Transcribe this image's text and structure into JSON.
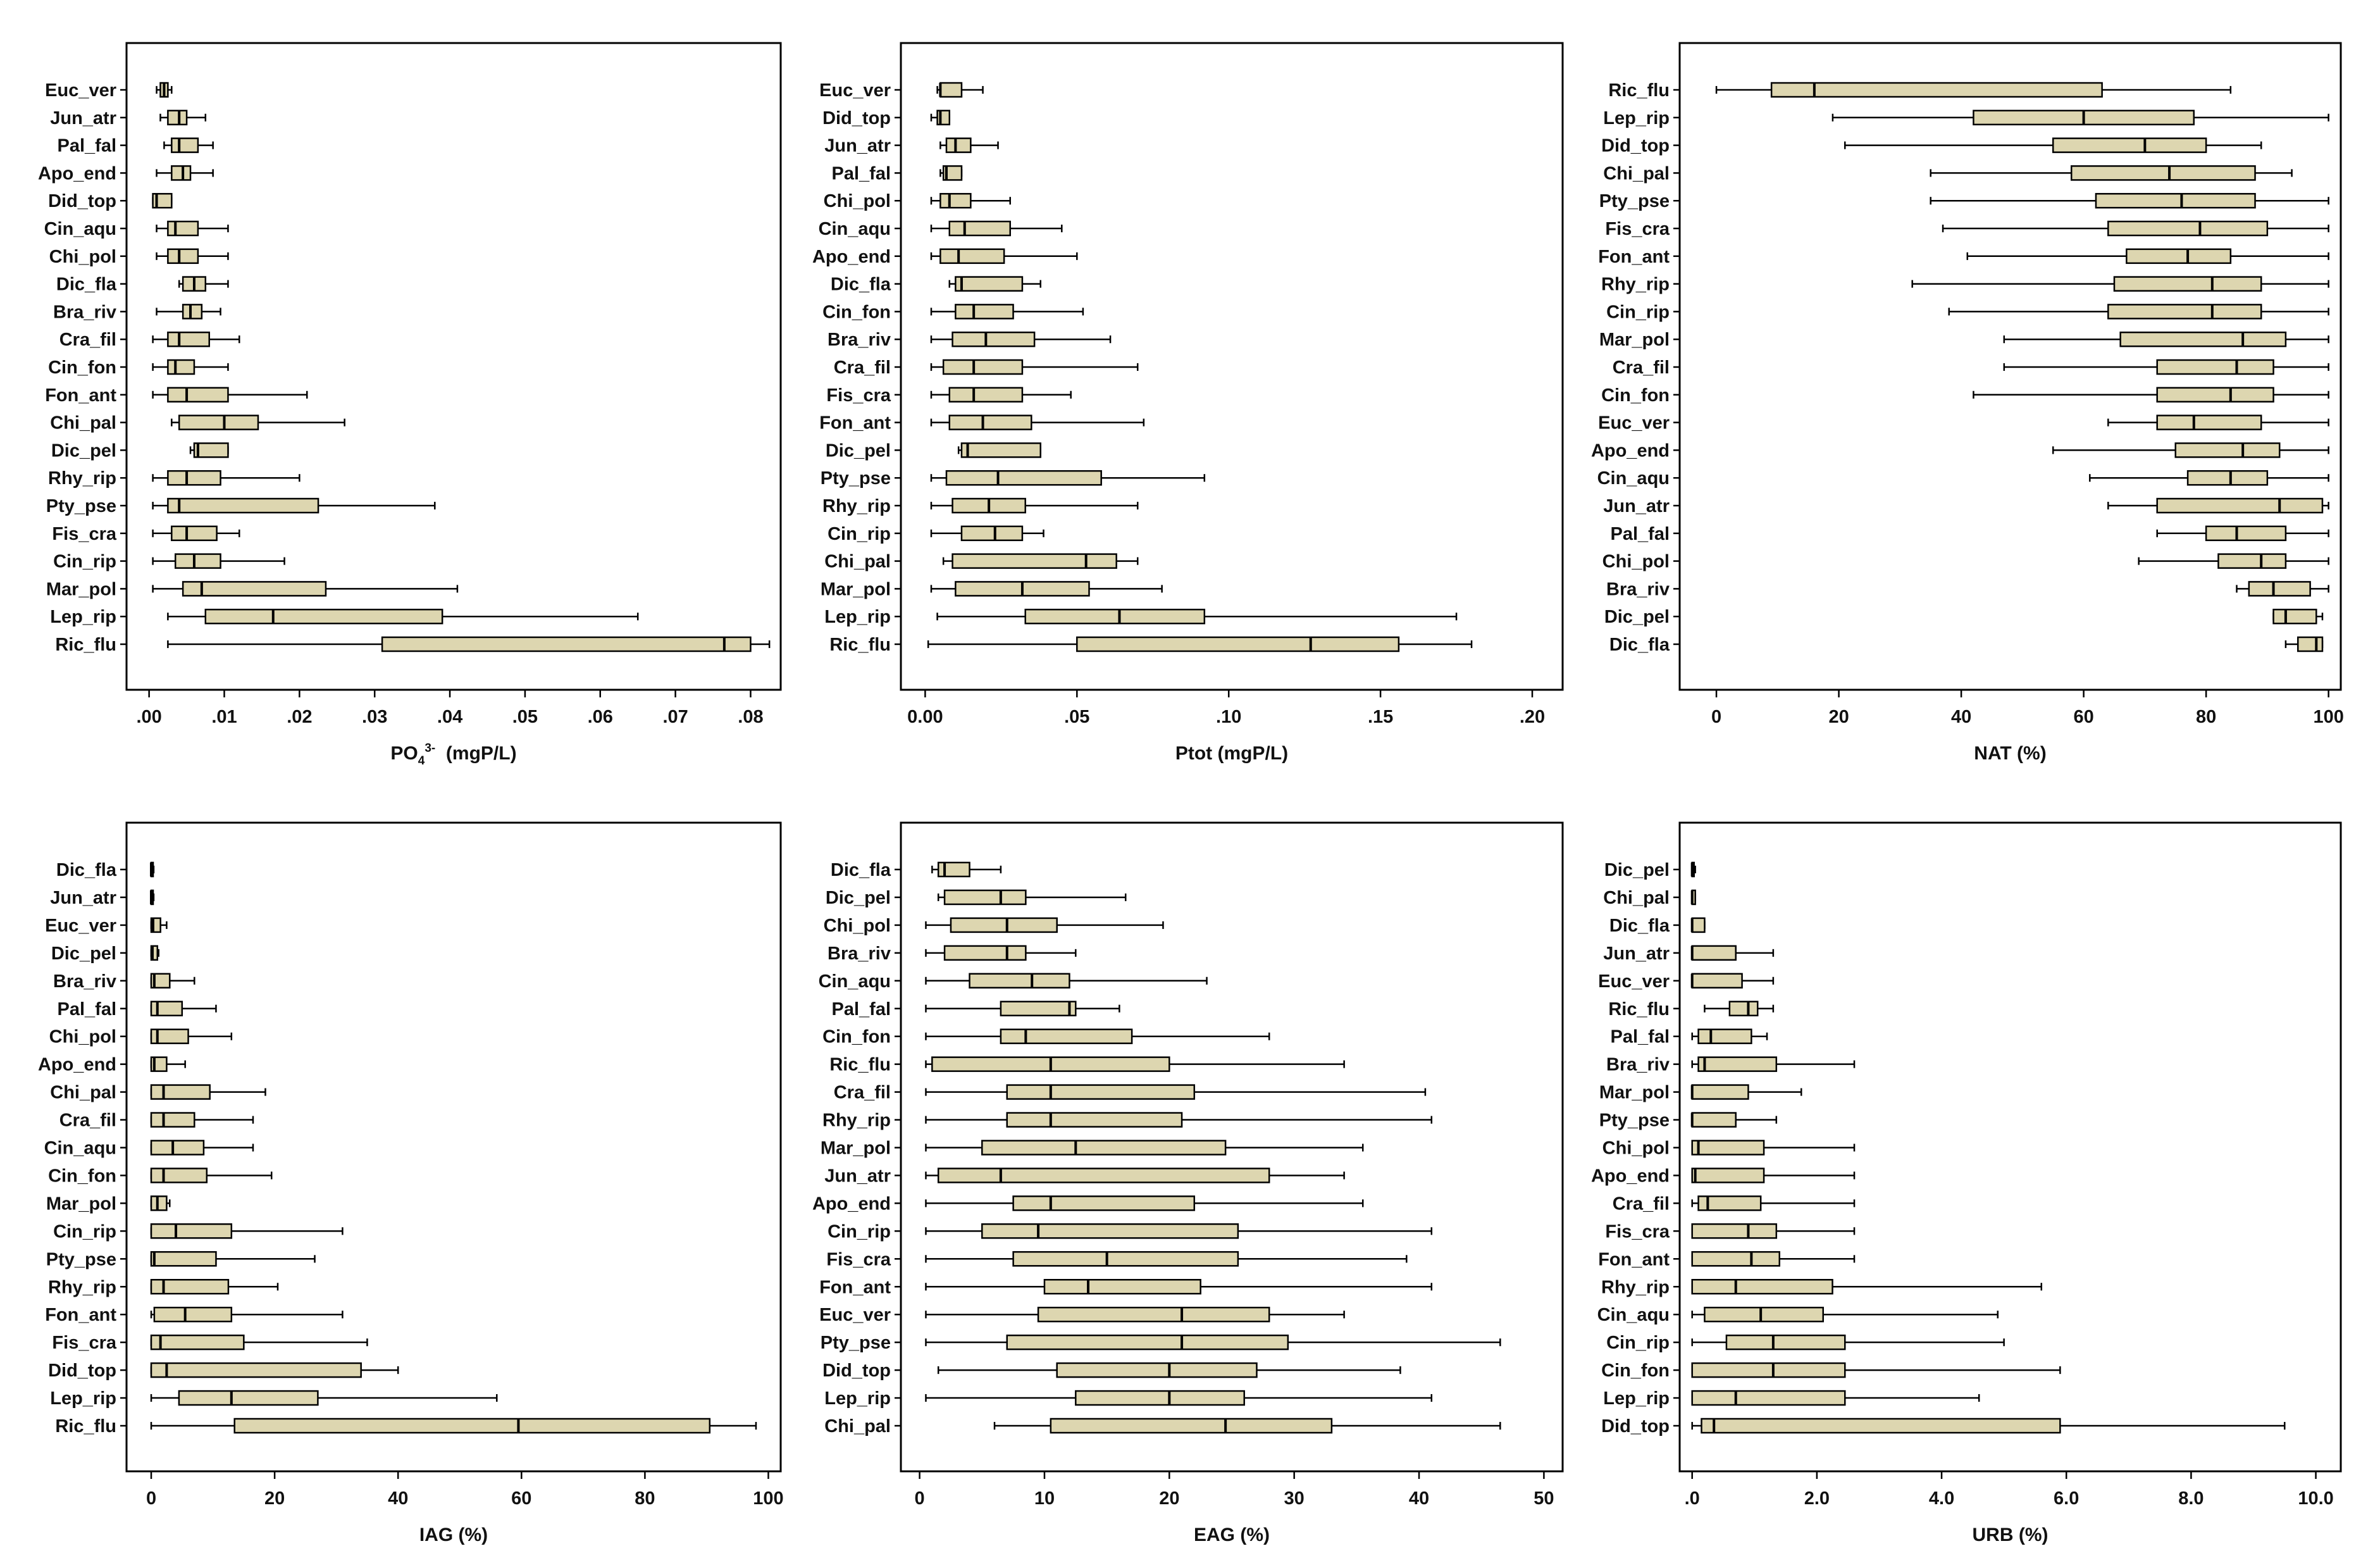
{
  "colors": {
    "box_fill": "#DDD6B0",
    "stroke": "#000000",
    "frame": "#000000",
    "background": "#ffffff"
  },
  "chart_data": [
    {
      "type": "boxplot",
      "xlabel_parts": {
        "main": "PO",
        "sub": "4",
        "sup": "3-",
        "unit": "  (mgP/L)"
      },
      "xlim": [
        -0.003,
        0.084
      ],
      "ticks": [
        0.0,
        0.01,
        0.02,
        0.03,
        0.04,
        0.05,
        0.06,
        0.07,
        0.08
      ],
      "tick_labels": [
        ".00",
        ".01",
        ".02",
        ".03",
        ".04",
        ".05",
        ".06",
        ".07",
        ".08"
      ],
      "categories": [
        "Euc_ver",
        "Jun_atr",
        "Pal_fal",
        "Apo_end",
        "Did_top",
        "Cin_aqu",
        "Chi_pol",
        "Dic_fla",
        "Bra_riv",
        "Cra_fil",
        "Cin_fon",
        "Fon_ant",
        "Chi_pal",
        "Dic_pel",
        "Rhy_rip",
        "Pty_pse",
        "Fis_cra",
        "Cin_rip",
        "Mar_pol",
        "Lep_rip",
        "Ric_flu"
      ],
      "boxes": [
        [
          0.001,
          0.0015,
          0.002,
          0.0025,
          0.003
        ],
        [
          0.0015,
          0.0025,
          0.004,
          0.005,
          0.0075
        ],
        [
          0.002,
          0.003,
          0.004,
          0.0065,
          0.0085
        ],
        [
          0.001,
          0.003,
          0.0045,
          0.0055,
          0.0085
        ],
        [
          0.0005,
          0.0005,
          0.001,
          0.003,
          0.003
        ],
        [
          0.001,
          0.0025,
          0.0035,
          0.0065,
          0.0105
        ],
        [
          0.001,
          0.0025,
          0.004,
          0.0065,
          0.0105
        ],
        [
          0.004,
          0.0045,
          0.006,
          0.0075,
          0.0105
        ],
        [
          0.001,
          0.0045,
          0.0055,
          0.007,
          0.0095
        ],
        [
          0.0005,
          0.0025,
          0.004,
          0.008,
          0.012
        ],
        [
          0.0005,
          0.0025,
          0.0035,
          0.006,
          0.0105
        ],
        [
          0.0005,
          0.0025,
          0.005,
          0.0105,
          0.021
        ],
        [
          0.003,
          0.004,
          0.01,
          0.0145,
          0.026
        ],
        [
          0.0055,
          0.006,
          0.0065,
          0.0105,
          0.0105
        ],
        [
          0.0005,
          0.0025,
          0.005,
          0.0095,
          0.02
        ],
        [
          0.0005,
          0.0025,
          0.004,
          0.0225,
          0.038
        ],
        [
          0.0005,
          0.003,
          0.005,
          0.009,
          0.012
        ],
        [
          0.0005,
          0.0035,
          0.006,
          0.0095,
          0.018
        ],
        [
          0.0005,
          0.0045,
          0.007,
          0.0235,
          0.041
        ],
        [
          0.0025,
          0.0075,
          0.0165,
          0.039,
          0.065
        ],
        [
          0.0025,
          0.031,
          0.0765,
          0.08,
          0.0825
        ]
      ]
    },
    {
      "type": "boxplot",
      "xlabel": "Ptot (mgP/L)",
      "xlim": [
        -0.008,
        0.21
      ],
      "ticks": [
        0.0,
        0.05,
        0.1,
        0.15,
        0.2
      ],
      "tick_labels": [
        "0.00",
        ".05",
        ".10",
        ".15",
        ".20"
      ],
      "categories": [
        "Euc_ver",
        "Did_top",
        "Jun_atr",
        "Pal_fal",
        "Chi_pol",
        "Cin_aqu",
        "Apo_end",
        "Dic_fla",
        "Cin_fon",
        "Bra_riv",
        "Cra_fil",
        "Fis_cra",
        "Fon_ant",
        "Dic_pel",
        "Pty_pse",
        "Rhy_rip",
        "Cin_rip",
        "Chi_pal",
        "Mar_pol",
        "Lep_rip",
        "Ric_flu"
      ],
      "boxes": [
        [
          0.004,
          0.005,
          0.005,
          0.012,
          0.019
        ],
        [
          0.002,
          0.004,
          0.005,
          0.008,
          0.008
        ],
        [
          0.005,
          0.007,
          0.01,
          0.015,
          0.024
        ],
        [
          0.005,
          0.006,
          0.007,
          0.012,
          0.012
        ],
        [
          0.002,
          0.005,
          0.008,
          0.015,
          0.028
        ],
        [
          0.002,
          0.008,
          0.013,
          0.028,
          0.045
        ],
        [
          0.002,
          0.005,
          0.011,
          0.026,
          0.05
        ],
        [
          0.008,
          0.01,
          0.012,
          0.032,
          0.038
        ],
        [
          0.002,
          0.01,
          0.016,
          0.029,
          0.052
        ],
        [
          0.002,
          0.009,
          0.02,
          0.036,
          0.061
        ],
        [
          0.002,
          0.006,
          0.016,
          0.032,
          0.07
        ],
        [
          0.002,
          0.008,
          0.016,
          0.032,
          0.048
        ],
        [
          0.002,
          0.008,
          0.019,
          0.035,
          0.072
        ],
        [
          0.011,
          0.012,
          0.014,
          0.038,
          0.038
        ],
        [
          0.002,
          0.007,
          0.024,
          0.058,
          0.092
        ],
        [
          0.002,
          0.009,
          0.021,
          0.033,
          0.07
        ],
        [
          0.002,
          0.012,
          0.023,
          0.032,
          0.039
        ],
        [
          0.006,
          0.009,
          0.053,
          0.063,
          0.07
        ],
        [
          0.002,
          0.01,
          0.032,
          0.054,
          0.078
        ],
        [
          0.004,
          0.033,
          0.064,
          0.092,
          0.175
        ],
        [
          0.001,
          0.05,
          0.127,
          0.156,
          0.18
        ]
      ]
    },
    {
      "type": "boxplot",
      "xlabel": "NAT (%)",
      "xlim": [
        -6,
        102
      ],
      "ticks": [
        0,
        20,
        40,
        60,
        80,
        100
      ],
      "tick_labels": [
        "0",
        "20",
        "40",
        "60",
        "80",
        "100"
      ],
      "categories": [
        "Ric_flu",
        "Lep_rip",
        "Did_top",
        "Chi_pal",
        "Pty_pse",
        "Fis_cra",
        "Fon_ant",
        "Rhy_rip",
        "Cin_rip",
        "Mar_pol",
        "Cra_fil",
        "Cin_fon",
        "Euc_ver",
        "Apo_end",
        "Cin_aqu",
        "Jun_atr",
        "Pal_fal",
        "Chi_pol",
        "Bra_riv",
        "Dic_pel",
        "Dic_fla"
      ],
      "boxes": [
        [
          0,
          9,
          16,
          63,
          84
        ],
        [
          19,
          42,
          60,
          78,
          100
        ],
        [
          21,
          55,
          70,
          80,
          89
        ],
        [
          35,
          58,
          74,
          88,
          94
        ],
        [
          35,
          62,
          76,
          88,
          100
        ],
        [
          37,
          64,
          79,
          90,
          100
        ],
        [
          41,
          67,
          77,
          84,
          100
        ],
        [
          32,
          65,
          81,
          89,
          100
        ],
        [
          38,
          64,
          81,
          89,
          100
        ],
        [
          47,
          66,
          86,
          93,
          100
        ],
        [
          47,
          72,
          85,
          91,
          100
        ],
        [
          42,
          72,
          84,
          91,
          100
        ],
        [
          64,
          72,
          78,
          89,
          100
        ],
        [
          55,
          75,
          86,
          92,
          100
        ],
        [
          61,
          77,
          84,
          90,
          100
        ],
        [
          64,
          72,
          92,
          99,
          100
        ],
        [
          72,
          80,
          85,
          93,
          100
        ],
        [
          69,
          82,
          89,
          93,
          100
        ],
        [
          85,
          87,
          91,
          97,
          100
        ],
        [
          91,
          91,
          93,
          98,
          99
        ],
        [
          93,
          95,
          98,
          99,
          99
        ]
      ]
    },
    {
      "type": "boxplot",
      "xlabel": "IAG (%)",
      "xlim": [
        -4,
        102
      ],
      "ticks": [
        0,
        20,
        40,
        60,
        80,
        100
      ],
      "tick_labels": [
        "0",
        "20",
        "40",
        "60",
        "80",
        "100"
      ],
      "categories": [
        "Dic_fla",
        "Jun_atr",
        "Euc_ver",
        "Dic_pel",
        "Bra_riv",
        "Pal_fal",
        "Chi_pol",
        "Apo_end",
        "Chi_pal",
        "Cra_fil",
        "Cin_aqu",
        "Cin_fon",
        "Mar_pol",
        "Cin_rip",
        "Pty_pse",
        "Rhy_rip",
        "Fon_ant",
        "Fis_cra",
        "Did_top",
        "Lep_rip",
        "Ric_flu"
      ],
      "boxes": [
        [
          0,
          0,
          0,
          0,
          0.4
        ],
        [
          0,
          0,
          0,
          0,
          0.4
        ],
        [
          0,
          0,
          0.3,
          1.5,
          2.5
        ],
        [
          0,
          0,
          0.2,
          1,
          1.2
        ],
        [
          0,
          0,
          0.5,
          3,
          7
        ],
        [
          0,
          0,
          1,
          5,
          10.5
        ],
        [
          0,
          0,
          1,
          6,
          13
        ],
        [
          0,
          0,
          0.5,
          2.5,
          5.5
        ],
        [
          0,
          0,
          2,
          9.5,
          18.5
        ],
        [
          0,
          0,
          2,
          7,
          16.5
        ],
        [
          0,
          0,
          3.5,
          8.5,
          16.5
        ],
        [
          0,
          0,
          2,
          9,
          19.5
        ],
        [
          0,
          0,
          1,
          2.5,
          3
        ],
        [
          0,
          0,
          4,
          13,
          31
        ],
        [
          0,
          0,
          0.5,
          10.5,
          26.5
        ],
        [
          0,
          0,
          2,
          12.5,
          20.5
        ],
        [
          0,
          0.5,
          5.5,
          13,
          31
        ],
        [
          0,
          0,
          1.5,
          15,
          35
        ],
        [
          0,
          0,
          2.5,
          34,
          40
        ],
        [
          0,
          4.5,
          13,
          27,
          56
        ],
        [
          0,
          13.5,
          59.5,
          90.5,
          98
        ]
      ]
    },
    {
      "type": "boxplot",
      "xlabel": "EAG (%)",
      "xlim": [
        -1.5,
        51.5
      ],
      "ticks": [
        0,
        10,
        20,
        30,
        40,
        50
      ],
      "tick_labels": [
        "0",
        "10",
        "20",
        "30",
        "40",
        "50"
      ],
      "categories": [
        "Dic_fla",
        "Dic_pel",
        "Chi_pol",
        "Bra_riv",
        "Cin_aqu",
        "Pal_fal",
        "Cin_fon",
        "Ric_flu",
        "Cra_fil",
        "Rhy_rip",
        "Mar_pol",
        "Jun_atr",
        "Apo_end",
        "Cin_rip",
        "Fis_cra",
        "Fon_ant",
        "Euc_ver",
        "Pty_pse",
        "Did_top",
        "Lep_rip",
        "Chi_pal"
      ],
      "boxes": [
        [
          1,
          1.5,
          2,
          4,
          6.5
        ],
        [
          1.5,
          2,
          6.5,
          8.5,
          16.5
        ],
        [
          0.5,
          2.5,
          7,
          11,
          19.5
        ],
        [
          0.5,
          2,
          7,
          8.5,
          12.5
        ],
        [
          0.5,
          4,
          9,
          12,
          23
        ],
        [
          0.5,
          6.5,
          12,
          12.5,
          16
        ],
        [
          0.5,
          6.5,
          8.5,
          17,
          28
        ],
        [
          0.5,
          1,
          10.5,
          20,
          34
        ],
        [
          0.5,
          7,
          10.5,
          22,
          40.5
        ],
        [
          0.5,
          7,
          10.5,
          21,
          41
        ],
        [
          0.5,
          5,
          12.5,
          24.5,
          35.5
        ],
        [
          0.5,
          1.5,
          6.5,
          28,
          34
        ],
        [
          0.5,
          7.5,
          10.5,
          22,
          35.5
        ],
        [
          0.5,
          5,
          9.5,
          25.5,
          41
        ],
        [
          0.5,
          7.5,
          15,
          25.5,
          39
        ],
        [
          0.5,
          10,
          13.5,
          22.5,
          41
        ],
        [
          0.5,
          9.5,
          21,
          28,
          34
        ],
        [
          0.5,
          7,
          21,
          29.5,
          46.5
        ],
        [
          1.5,
          11,
          20,
          27,
          38.5
        ],
        [
          0.5,
          12.5,
          20,
          26,
          41
        ],
        [
          6,
          10.5,
          24.5,
          33,
          46.5
        ]
      ]
    },
    {
      "type": "boxplot",
      "xlabel": "URB (%)",
      "xlim": [
        -0.2,
        10.4
      ],
      "ticks": [
        0,
        2,
        4,
        6,
        8,
        10
      ],
      "tick_labels": [
        ".0",
        "2.0",
        "4.0",
        "6.0",
        "8.0",
        "10.0"
      ],
      "categories": [
        "Dic_pel",
        "Chi_pal",
        "Dic_fla",
        "Jun_atr",
        "Euc_ver",
        "Ric_flu",
        "Pal_fal",
        "Bra_riv",
        "Mar_pol",
        "Pty_pse",
        "Chi_pol",
        "Apo_end",
        "Cra_fil",
        "Fis_cra",
        "Fon_ant",
        "Rhy_rip",
        "Cin_aqu",
        "Cin_rip",
        "Cin_fon",
        "Lep_rip",
        "Did_top"
      ],
      "boxes": [
        [
          0,
          0,
          0,
          0,
          0.05
        ],
        [
          0,
          0,
          0,
          0.05,
          0.05
        ],
        [
          0,
          0,
          0,
          0.2,
          0.2
        ],
        [
          0,
          0,
          0,
          0.7,
          1.3
        ],
        [
          0,
          0,
          0,
          0.8,
          1.3
        ],
        [
          0.2,
          0.6,
          0.9,
          1.05,
          1.3
        ],
        [
          0,
          0.1,
          0.3,
          0.95,
          1.2
        ],
        [
          0,
          0.1,
          0.2,
          1.35,
          2.6
        ],
        [
          0,
          0,
          0,
          0.9,
          1.75
        ],
        [
          0,
          0,
          0,
          0.7,
          1.35
        ],
        [
          0,
          0,
          0.1,
          1.15,
          2.6
        ],
        [
          0,
          0,
          0.05,
          1.15,
          2.6
        ],
        [
          0,
          0.1,
          0.25,
          1.1,
          2.6
        ],
        [
          0,
          0,
          0.9,
          1.35,
          2.6
        ],
        [
          0,
          0,
          0.95,
          1.4,
          2.6
        ],
        [
          0,
          0,
          0.7,
          2.25,
          5.6
        ],
        [
          0,
          0.2,
          1.1,
          2.1,
          4.9
        ],
        [
          0,
          0.55,
          1.3,
          2.45,
          5.0
        ],
        [
          0,
          0,
          1.3,
          2.45,
          5.9
        ],
        [
          0,
          0,
          0.7,
          2.45,
          4.6
        ],
        [
          0,
          0.15,
          0.35,
          5.9,
          9.5
        ]
      ]
    }
  ]
}
